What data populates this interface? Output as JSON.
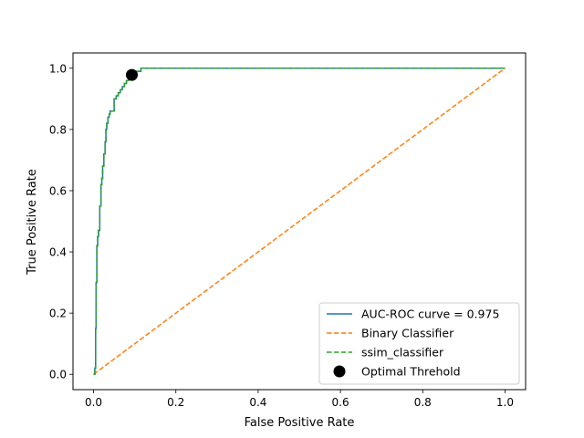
{
  "chart_data": {
    "type": "line",
    "xlabel": "False Positive Rate",
    "ylabel": "True Positive Rate",
    "xlim": [
      -0.05,
      1.05
    ],
    "ylim": [
      -0.05,
      1.05
    ],
    "x_ticks": [
      "0.0",
      "0.2",
      "0.4",
      "0.6",
      "0.8",
      "1.0"
    ],
    "y_ticks": [
      "0.0",
      "0.2",
      "0.4",
      "0.6",
      "0.8",
      "1.0"
    ],
    "grid": false,
    "legend_position": "lower-right",
    "series": [
      {
        "name": "AUC-ROC curve = 0.975",
        "style": "solid",
        "color": "#1f77b4",
        "x": [
          0.0,
          0.003,
          0.005,
          0.006,
          0.008,
          0.01,
          0.012,
          0.015,
          0.018,
          0.02,
          0.022,
          0.025,
          0.028,
          0.03,
          0.032,
          0.035,
          0.038,
          0.04,
          0.045,
          0.05,
          0.055,
          0.06,
          0.065,
          0.07,
          0.075,
          0.08,
          0.085,
          0.09,
          0.095,
          0.1,
          0.105,
          0.11,
          0.115,
          1.0
        ],
        "y": [
          0.0,
          0.02,
          0.15,
          0.3,
          0.42,
          0.45,
          0.47,
          0.55,
          0.62,
          0.64,
          0.68,
          0.72,
          0.76,
          0.8,
          0.82,
          0.84,
          0.85,
          0.86,
          0.86,
          0.9,
          0.91,
          0.92,
          0.93,
          0.94,
          0.95,
          0.96,
          0.97,
          0.97,
          0.98,
          0.98,
          0.99,
          0.99,
          1.0,
          1.0
        ]
      },
      {
        "name": "Binary Classifier",
        "style": "dashed",
        "color": "#ff7f0e",
        "x": [
          0.0,
          1.0
        ],
        "y": [
          0.0,
          1.0
        ]
      },
      {
        "name": "ssim_classifier",
        "style": "dashed",
        "color": "#2ca02c",
        "x": [
          0.0,
          0.003,
          0.005,
          0.006,
          0.008,
          0.01,
          0.012,
          0.015,
          0.018,
          0.02,
          0.022,
          0.025,
          0.028,
          0.03,
          0.032,
          0.035,
          0.038,
          0.04,
          0.045,
          0.05,
          0.055,
          0.06,
          0.065,
          0.07,
          0.075,
          0.08,
          0.085,
          0.09,
          0.095,
          0.1,
          0.105,
          0.11,
          0.115,
          1.0
        ],
        "y": [
          0.0,
          0.02,
          0.15,
          0.3,
          0.42,
          0.45,
          0.47,
          0.55,
          0.62,
          0.64,
          0.68,
          0.72,
          0.76,
          0.8,
          0.82,
          0.84,
          0.85,
          0.86,
          0.86,
          0.9,
          0.91,
          0.92,
          0.93,
          0.94,
          0.95,
          0.96,
          0.97,
          0.97,
          0.98,
          0.98,
          0.99,
          0.99,
          1.0,
          1.0
        ]
      }
    ],
    "points": [
      {
        "name": "Optimal Threhold",
        "color": "#000000",
        "x": 0.093,
        "y": 0.978
      }
    ]
  }
}
